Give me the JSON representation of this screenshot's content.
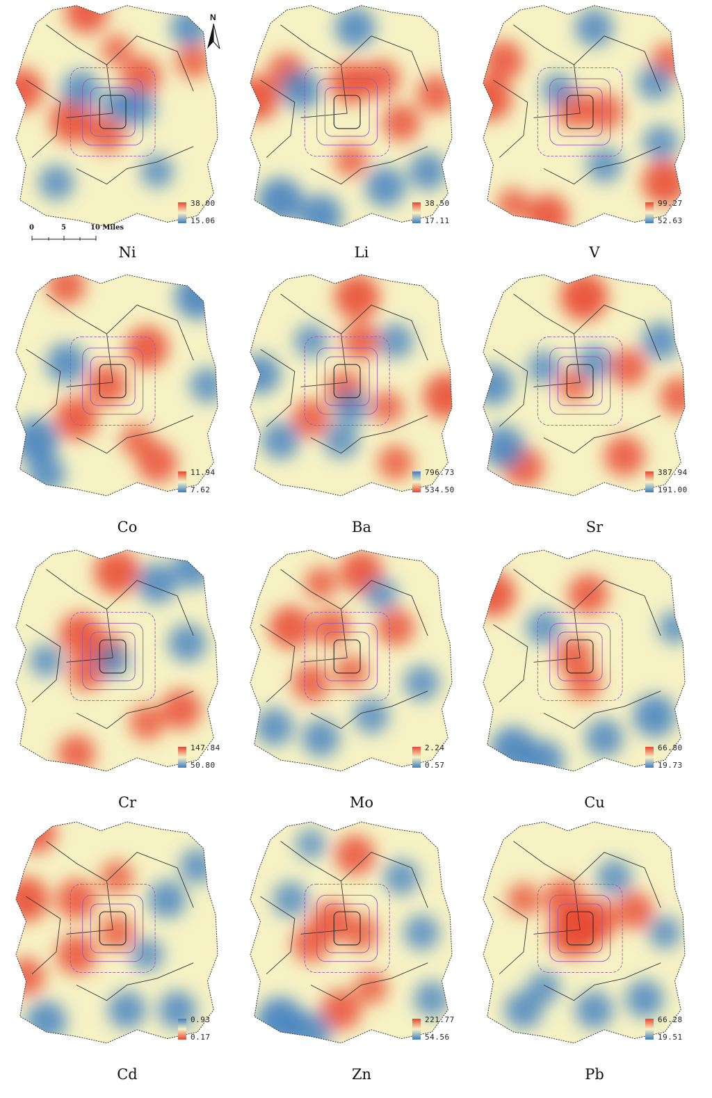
{
  "panels": [
    {
      "element": "Ni",
      "legend_high": "38.00",
      "legend_low": "15.06",
      "legend_top_color": "#e8452f",
      "legend_bottom_color": "#3c7dc0"
    },
    {
      "element": "Li",
      "legend_high": "38.50",
      "legend_low": "17.11",
      "legend_top_color": "#e8452f",
      "legend_bottom_color": "#3c7dc0"
    },
    {
      "element": "V",
      "legend_high": "99.27",
      "legend_low": "52.63",
      "legend_top_color": "#e8452f",
      "legend_bottom_color": "#3c7dc0"
    },
    {
      "element": "Co",
      "legend_high": "11.94",
      "legend_low": "7.62",
      "legend_top_color": "#e8452f",
      "legend_bottom_color": "#3c7dc0"
    },
    {
      "element": "Ba",
      "legend_high": "796.73",
      "legend_low": "534.50",
      "legend_top_color": "#3c7dc0",
      "legend_bottom_color": "#e8452f"
    },
    {
      "element": "Sr",
      "legend_high": "387.94",
      "legend_low": "191.00",
      "legend_top_color": "#e8452f",
      "legend_bottom_color": "#3c7dc0"
    },
    {
      "element": "Cr",
      "legend_high": "147.84",
      "legend_low": "50.80",
      "legend_top_color": "#e8452f",
      "legend_bottom_color": "#3c7dc0"
    },
    {
      "element": "Mo",
      "legend_high": "2.24",
      "legend_low": "0.57",
      "legend_top_color": "#e8452f",
      "legend_bottom_color": "#3c7dc0"
    },
    {
      "element": "Cu",
      "legend_high": "66.80",
      "legend_low": "19.73",
      "legend_top_color": "#e8452f",
      "legend_bottom_color": "#3c7dc0"
    },
    {
      "element": "Cd",
      "legend_high": "0.93",
      "legend_low": "0.17",
      "legend_top_color": "#3c7dc0",
      "legend_bottom_color": "#e8452f"
    },
    {
      "element": "Zn",
      "legend_high": "221.77",
      "legend_low": "54.56",
      "legend_top_color": "#e8452f",
      "legend_bottom_color": "#3c7dc0"
    },
    {
      "element": "Pb",
      "legend_high": "66.28",
      "legend_low": "19.51",
      "legend_top_color": "#e8452f",
      "legend_bottom_color": "#3c7dc0"
    }
  ],
  "north_arrow": {
    "label": "N"
  },
  "scale_bar": {
    "labels": [
      "0",
      "5",
      "10 Miles"
    ]
  },
  "colors": {
    "high": "#e8452f",
    "mid": "#f6f2c4",
    "low": "#3c7dc0",
    "boundary": "#333333",
    "ring_road": "#9b59b6"
  },
  "hotspots": [
    [
      [
        0.35,
        0.03,
        1,
        0.55
      ],
      [
        0.03,
        0.38,
        1,
        0.55
      ],
      [
        0.28,
        0.52,
        1,
        0.6
      ],
      [
        0.45,
        0.58,
        1,
        0.45
      ],
      [
        0.62,
        0.32,
        1,
        0.5
      ],
      [
        0.88,
        0.25,
        1,
        0.4
      ],
      [
        0.32,
        0.38,
        -1,
        0.45
      ],
      [
        0.5,
        0.45,
        -1,
        0.35
      ],
      [
        0.6,
        0.46,
        -1,
        0.45
      ],
      [
        0.86,
        0.1,
        -1,
        0.45
      ],
      [
        0.2,
        0.8,
        -1,
        0.4
      ],
      [
        0.7,
        0.75,
        -1,
        0.35
      ],
      [
        0.5,
        0.2,
        1,
        0.3
      ]
    ],
    [
      [
        0.03,
        0.42,
        1,
        0.6
      ],
      [
        0.18,
        0.3,
        1,
        0.45
      ],
      [
        0.5,
        0.35,
        1,
        0.55
      ],
      [
        0.65,
        0.33,
        1,
        0.45
      ],
      [
        0.75,
        0.53,
        1,
        0.45
      ],
      [
        0.92,
        0.4,
        1,
        0.45
      ],
      [
        0.5,
        0.7,
        1,
        0.35
      ],
      [
        0.52,
        0.1,
        -1,
        0.5
      ],
      [
        0.25,
        0.38,
        -1,
        0.5
      ],
      [
        0.15,
        0.88,
        -1,
        0.6
      ],
      [
        0.35,
        0.95,
        -1,
        0.55
      ],
      [
        0.67,
        0.82,
        -1,
        0.5
      ],
      [
        0.88,
        0.75,
        -1,
        0.45
      ]
    ],
    [
      [
        0.03,
        0.42,
        1,
        0.6
      ],
      [
        0.1,
        0.25,
        1,
        0.5
      ],
      [
        0.45,
        0.47,
        1,
        0.45
      ],
      [
        0.6,
        0.48,
        1,
        0.45
      ],
      [
        0.9,
        0.8,
        1,
        0.6
      ],
      [
        0.32,
        0.95,
        1,
        0.55
      ],
      [
        0.92,
        0.25,
        1,
        0.4
      ],
      [
        0.55,
        0.1,
        -1,
        0.45
      ],
      [
        0.85,
        0.35,
        -1,
        0.4
      ],
      [
        0.88,
        0.62,
        -1,
        0.4
      ],
      [
        0.6,
        0.72,
        -1,
        0.4
      ],
      [
        0.37,
        0.38,
        -1,
        0.35
      ],
      [
        0.15,
        0.9,
        1,
        0.35
      ]
    ],
    [
      [
        0.25,
        0.05,
        1,
        0.45
      ],
      [
        0.65,
        0.33,
        1,
        0.55
      ],
      [
        0.45,
        0.5,
        1,
        0.5
      ],
      [
        0.3,
        0.65,
        1,
        0.55
      ],
      [
        0.7,
        0.85,
        1,
        0.5
      ],
      [
        0.9,
        0.1,
        -1,
        0.6
      ],
      [
        0.25,
        0.4,
        -1,
        0.5
      ],
      [
        0.1,
        0.75,
        -1,
        0.6
      ],
      [
        0.15,
        0.9,
        -1,
        0.45
      ],
      [
        0.95,
        0.5,
        -1,
        0.4
      ],
      [
        0.6,
        0.75,
        1,
        0.35
      ]
    ],
    [
      [
        0.53,
        0.1,
        1,
        0.6
      ],
      [
        0.55,
        0.3,
        1,
        0.45
      ],
      [
        0.47,
        0.52,
        1,
        0.45
      ],
      [
        0.3,
        0.65,
        1,
        0.45
      ],
      [
        0.97,
        0.55,
        1,
        0.6
      ],
      [
        0.68,
        0.6,
        1,
        0.35
      ],
      [
        0.72,
        0.85,
        1,
        0.4
      ],
      [
        0.05,
        0.45,
        -1,
        0.5
      ],
      [
        0.3,
        0.3,
        -1,
        0.35
      ],
      [
        0.5,
        0.6,
        -1,
        0.4
      ],
      [
        0.72,
        0.3,
        -1,
        0.4
      ],
      [
        0.15,
        0.75,
        -1,
        0.45
      ],
      [
        0.45,
        0.75,
        -1,
        0.4
      ]
    ],
    [
      [
        0.5,
        0.1,
        1,
        0.65
      ],
      [
        0.72,
        0.42,
        1,
        0.45
      ],
      [
        0.2,
        0.87,
        1,
        0.5
      ],
      [
        0.7,
        0.82,
        1,
        0.5
      ],
      [
        0.97,
        0.55,
        1,
        0.45
      ],
      [
        0.45,
        0.5,
        1,
        0.35
      ],
      [
        0.05,
        0.5,
        -1,
        0.5
      ],
      [
        0.1,
        0.78,
        -1,
        0.55
      ],
      [
        0.88,
        0.3,
        -1,
        0.45
      ],
      [
        0.3,
        0.42,
        -1,
        0.35
      ],
      [
        0.55,
        0.4,
        -1,
        0.4
      ]
    ],
    [
      [
        0.5,
        0.1,
        1,
        0.6
      ],
      [
        0.32,
        0.38,
        1,
        0.55
      ],
      [
        0.35,
        0.55,
        1,
        0.45
      ],
      [
        0.45,
        0.45,
        1,
        0.4
      ],
      [
        0.82,
        0.72,
        1,
        0.5
      ],
      [
        0.65,
        0.78,
        1,
        0.4
      ],
      [
        0.3,
        0.92,
        1,
        0.45
      ],
      [
        0.7,
        0.15,
        -1,
        0.5
      ],
      [
        0.88,
        0.08,
        -1,
        0.5
      ],
      [
        0.48,
        0.5,
        -1,
        0.35
      ],
      [
        0.85,
        0.42,
        -1,
        0.45
      ],
      [
        0.15,
        0.5,
        -1,
        0.35
      ]
    ],
    [
      [
        0.55,
        0.1,
        1,
        0.55
      ],
      [
        0.2,
        0.35,
        1,
        0.55
      ],
      [
        0.4,
        0.35,
        1,
        0.45
      ],
      [
        0.72,
        0.35,
        1,
        0.45
      ],
      [
        0.3,
        0.6,
        1,
        0.45
      ],
      [
        0.5,
        0.55,
        1,
        0.35
      ],
      [
        0.35,
        0.15,
        1,
        0.35
      ],
      [
        0.12,
        0.8,
        -1,
        0.45
      ],
      [
        0.35,
        0.85,
        -1,
        0.45
      ],
      [
        0.6,
        0.75,
        -1,
        0.4
      ],
      [
        0.85,
        0.6,
        -1,
        0.4
      ],
      [
        0.65,
        0.2,
        -1,
        0.35
      ]
    ],
    [
      [
        0.05,
        0.2,
        1,
        0.6
      ],
      [
        0.52,
        0.2,
        1,
        0.5
      ],
      [
        0.45,
        0.48,
        1,
        0.45
      ],
      [
        0.5,
        0.6,
        1,
        0.4
      ],
      [
        0.15,
        0.9,
        -1,
        0.6
      ],
      [
        0.3,
        0.95,
        -1,
        0.5
      ],
      [
        0.85,
        0.75,
        -1,
        0.55
      ],
      [
        0.6,
        0.85,
        -1,
        0.45
      ],
      [
        0.3,
        0.35,
        -1,
        0.4
      ],
      [
        0.95,
        0.35,
        -1,
        0.35
      ]
    ],
    [
      [
        0.1,
        0.05,
        1,
        0.5
      ],
      [
        0.05,
        0.35,
        1,
        0.6
      ],
      [
        0.3,
        0.35,
        1,
        0.5
      ],
      [
        0.3,
        0.6,
        1,
        0.5
      ],
      [
        0.5,
        0.5,
        1,
        0.4
      ],
      [
        0.05,
        0.7,
        1,
        0.45
      ],
      [
        0.5,
        0.25,
        1,
        0.35
      ],
      [
        0.75,
        0.35,
        -1,
        0.45
      ],
      [
        0.15,
        0.9,
        -1,
        0.5
      ],
      [
        0.55,
        0.85,
        -1,
        0.45
      ],
      [
        0.8,
        0.85,
        -1,
        0.45
      ],
      [
        0.9,
        0.2,
        -1,
        0.4
      ],
      [
        0.65,
        0.6,
        -1,
        0.35
      ]
    ],
    [
      [
        0.52,
        0.15,
        1,
        0.5
      ],
      [
        0.4,
        0.45,
        1,
        0.5
      ],
      [
        0.55,
        0.5,
        1,
        0.4
      ],
      [
        0.3,
        0.55,
        1,
        0.45
      ],
      [
        0.45,
        0.85,
        1,
        0.5
      ],
      [
        0.6,
        0.75,
        1,
        0.35
      ],
      [
        0.15,
        0.9,
        -1,
        0.65
      ],
      [
        0.3,
        0.95,
        -1,
        0.5
      ],
      [
        0.85,
        0.5,
        -1,
        0.4
      ],
      [
        0.75,
        0.25,
        -1,
        0.4
      ],
      [
        0.2,
        0.35,
        -1,
        0.4
      ],
      [
        0.9,
        0.8,
        -1,
        0.4
      ],
      [
        0.3,
        0.1,
        -1,
        0.3
      ]
    ],
    [
      [
        0.45,
        0.5,
        1,
        0.7
      ],
      [
        0.55,
        0.45,
        1,
        0.6
      ],
      [
        0.4,
        0.35,
        1,
        0.5
      ],
      [
        0.75,
        0.4,
        1,
        0.45
      ],
      [
        0.2,
        0.35,
        1,
        0.35
      ],
      [
        0.55,
        0.85,
        -1,
        0.45
      ],
      [
        0.2,
        0.85,
        -1,
        0.45
      ],
      [
        0.8,
        0.8,
        -1,
        0.45
      ],
      [
        0.65,
        0.25,
        -1,
        0.4
      ],
      [
        0.9,
        0.5,
        -1,
        0.35
      ],
      [
        0.3,
        0.75,
        -1,
        0.35
      ]
    ]
  ]
}
